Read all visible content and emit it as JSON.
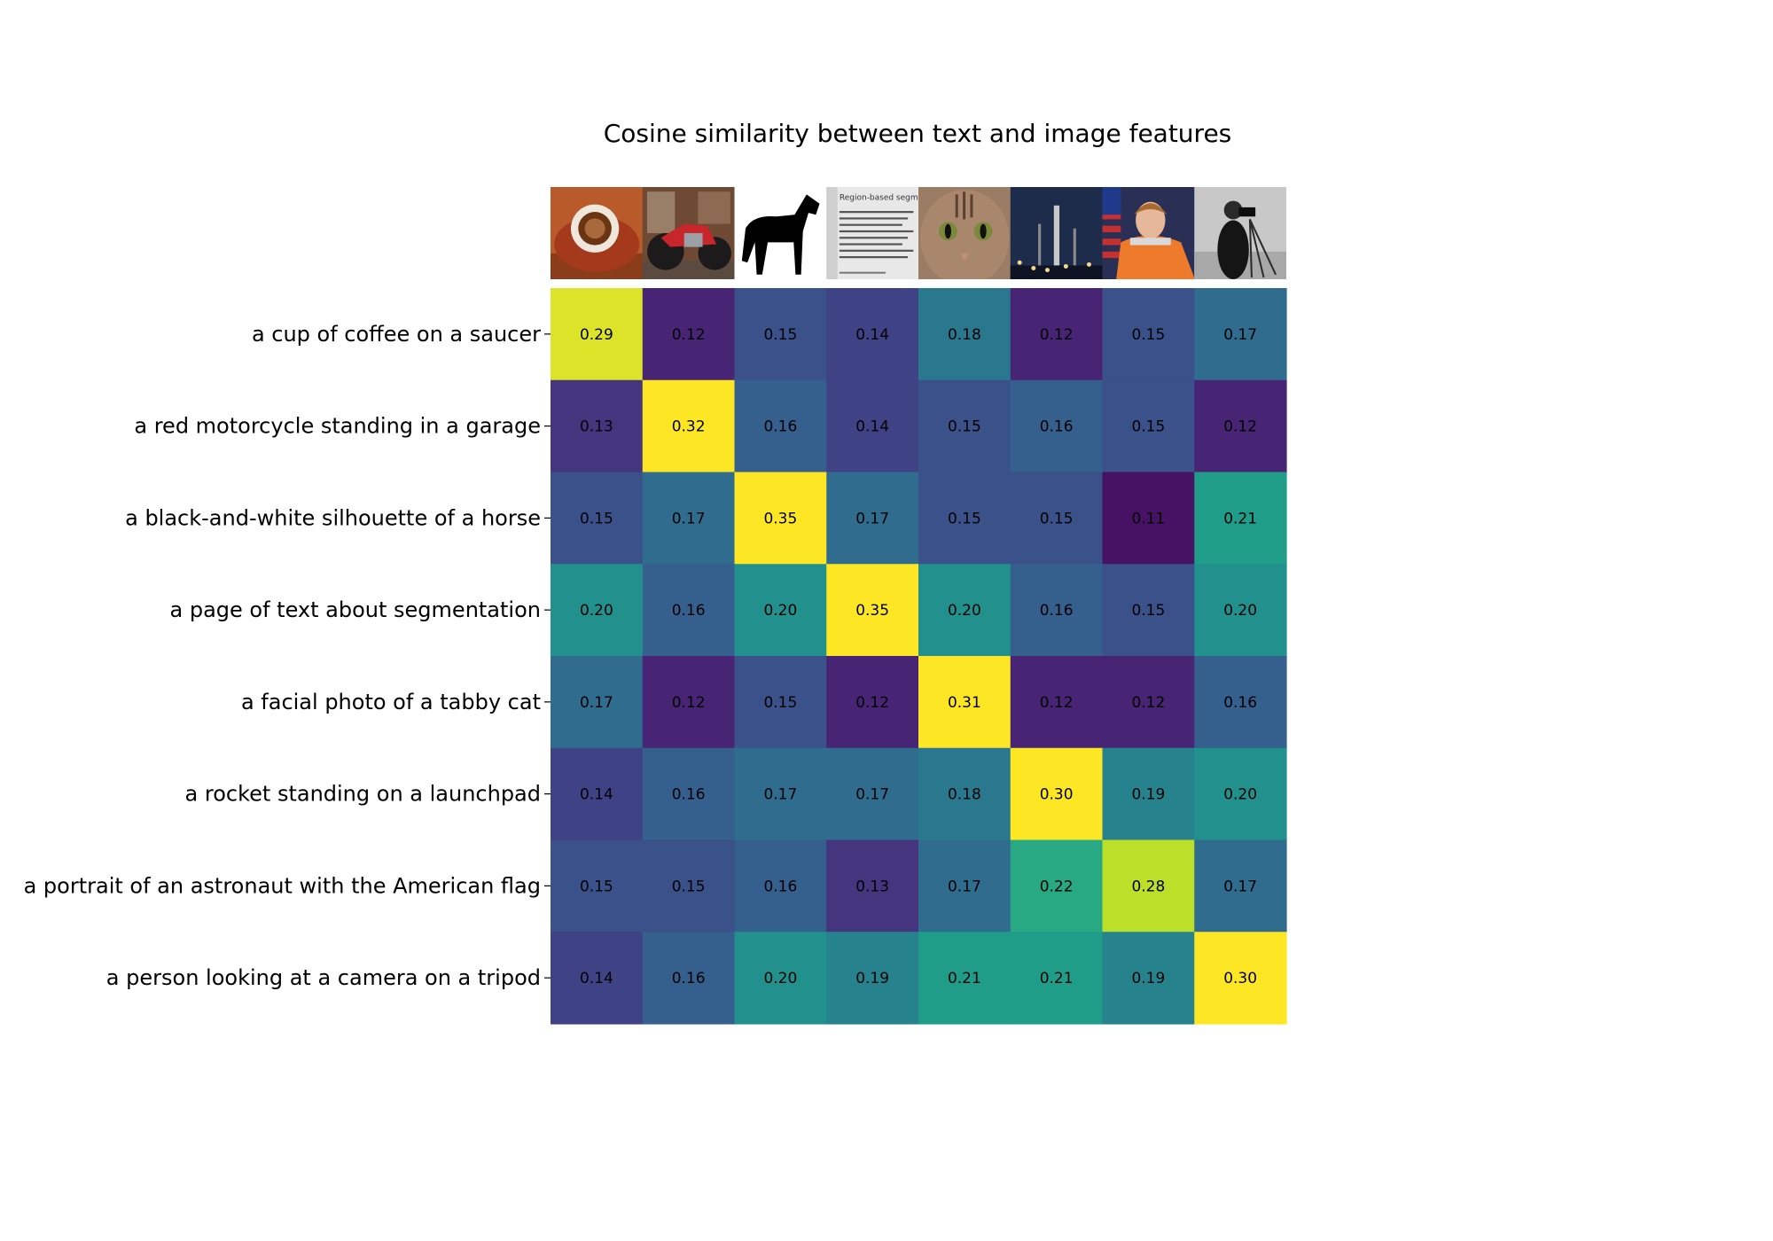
{
  "chart_data": {
    "type": "heatmap",
    "title": "Cosine similarity between text and image features",
    "row_labels": [
      "a cup of coffee on a saucer",
      "a red motorcycle standing in a garage",
      "a black-and-white silhouette of a horse",
      "a page of text about segmentation",
      "a facial photo of a tabby cat",
      "a rocket standing on a launchpad",
      "a portrait of an astronaut with the American flag",
      "a person looking at a camera on a tripod"
    ],
    "column_images": [
      "coffee-image",
      "motorcycle-image",
      "horse-image",
      "text-page-image",
      "cat-image",
      "rocket-image",
      "astronaut-image",
      "cameraman-image"
    ],
    "text_page_heading": "Region-based segmentation",
    "values": [
      [
        0.29,
        0.12,
        0.15,
        0.14,
        0.18,
        0.12,
        0.15,
        0.17
      ],
      [
        0.13,
        0.32,
        0.16,
        0.14,
        0.15,
        0.16,
        0.15,
        0.12
      ],
      [
        0.15,
        0.17,
        0.35,
        0.17,
        0.15,
        0.15,
        0.11,
        0.21
      ],
      [
        0.2,
        0.16,
        0.2,
        0.35,
        0.2,
        0.16,
        0.15,
        0.2
      ],
      [
        0.17,
        0.12,
        0.15,
        0.12,
        0.31,
        0.12,
        0.12,
        0.16
      ],
      [
        0.14,
        0.16,
        0.17,
        0.17,
        0.18,
        0.3,
        0.19,
        0.2
      ],
      [
        0.15,
        0.15,
        0.16,
        0.13,
        0.17,
        0.22,
        0.28,
        0.17
      ],
      [
        0.14,
        0.16,
        0.2,
        0.19,
        0.21,
        0.21,
        0.19,
        0.3
      ]
    ],
    "color_range": [
      0.1,
      0.3
    ],
    "colormap": "viridis"
  }
}
